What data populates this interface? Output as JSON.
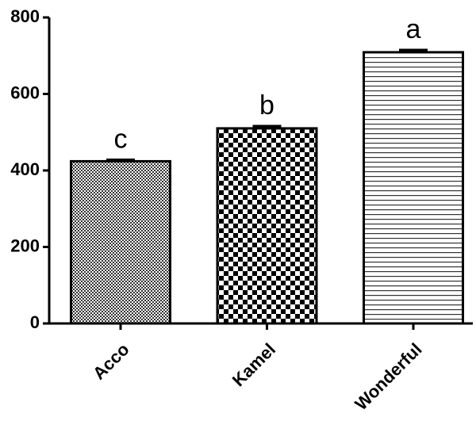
{
  "chart_data": {
    "type": "bar",
    "categories": [
      "Acco",
      "Kamel",
      "Wonderful"
    ],
    "values": [
      424,
      510,
      709
    ],
    "errors": [
      4,
      6,
      6
    ],
    "annotations": [
      "c",
      "b",
      "a"
    ],
    "patterns": [
      "crosshatch",
      "checker",
      "hstripes"
    ],
    "color": "#000000",
    "ylim": [
      0,
      800
    ],
    "yticks": [
      0,
      200,
      400,
      600,
      800
    ],
    "grid": false
  }
}
